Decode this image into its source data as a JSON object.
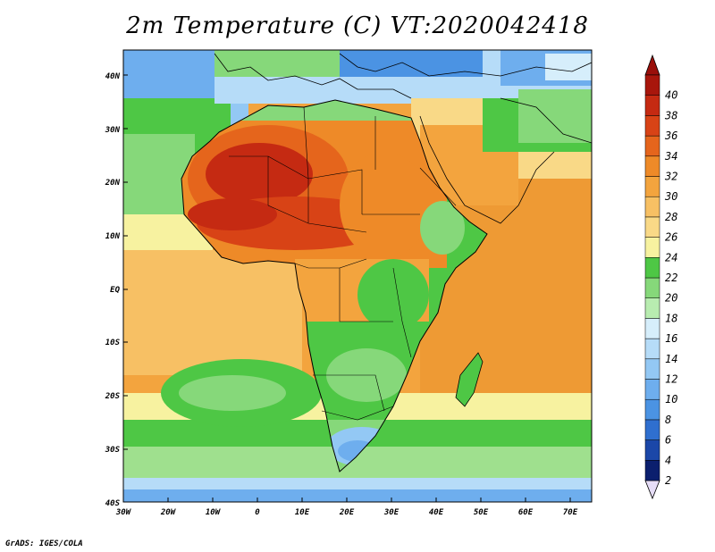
{
  "title": "2m Temperature (C) VT:2020042418",
  "credit": "GrADS: IGES/COLA",
  "lat_labels": [
    "40N",
    "30N",
    "20N",
    "10N",
    "EQ",
    "10S",
    "20S",
    "30S",
    "40S"
  ],
  "lon_labels": [
    "30W",
    "20W",
    "10W",
    "0",
    "10E",
    "20E",
    "30E",
    "40E",
    "50E",
    "60E",
    "70E"
  ],
  "colorbar": {
    "values": [
      "2",
      "4",
      "6",
      "8",
      "10",
      "12",
      "14",
      "16",
      "18",
      "20",
      "22",
      "24",
      "26",
      "28",
      "30",
      "32",
      "34",
      "36",
      "38",
      "40"
    ],
    "colors": [
      "#0b1f6e",
      "#1b47a8",
      "#2f6fcf",
      "#4b93e3",
      "#6eaeee",
      "#93c8f4",
      "#b6dcf8",
      "#d6eefb",
      "#b8ecb0",
      "#86d87a",
      "#4ec745",
      "#f7f2a0",
      "#f9d987",
      "#f7c064",
      "#f3a43e",
      "#ee8a28",
      "#e5651c",
      "#d84316",
      "#c52a12",
      "#a8160c"
    ],
    "below_color": "#e6ddf7",
    "above_color": "#9a0f0a"
  },
  "map_colors": {
    "ocean_warm": "#f5b04e",
    "sahara_hot": "#e0531a",
    "hot_core": "#c52a12",
    "green": "#4ec745",
    "light_green": "#9fe08e",
    "cool": "#93c8f4"
  }
}
